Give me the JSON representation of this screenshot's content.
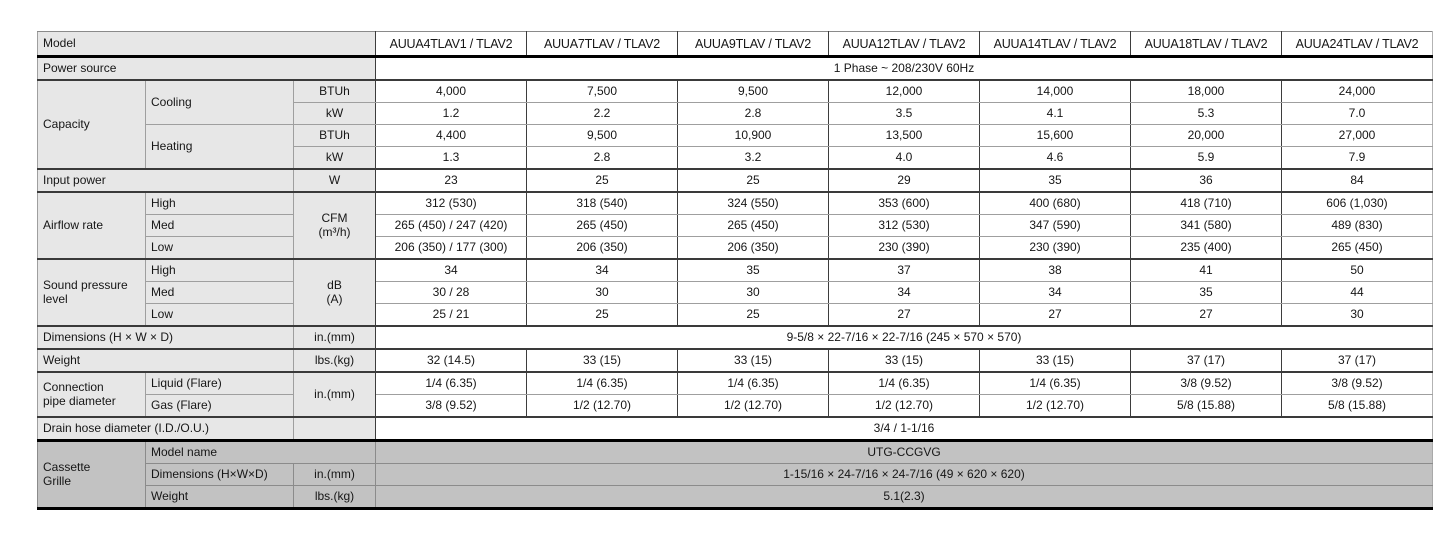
{
  "table": {
    "header": {
      "model_label": "Model",
      "models": [
        "AUUA4TLAV1 / TLAV2",
        "AUUA7TLAV / TLAV2",
        "AUUA9TLAV / TLAV2",
        "AUUA12TLAV / TLAV2",
        "AUUA14TLAV / TLAV2",
        "AUUA18TLAV / TLAV2",
        "AUUA24TLAV / TLAV2"
      ]
    },
    "power_source": {
      "label": "Power source",
      "value": "1 Phase ~ 208/230V 60Hz"
    },
    "capacity": {
      "label": "Capacity",
      "cooling": {
        "label": "Cooling",
        "btuh": {
          "unit": "BTUh",
          "values": [
            "4,000",
            "7,500",
            "9,500",
            "12,000",
            "14,000",
            "18,000",
            "24,000"
          ]
        },
        "kw": {
          "unit": "kW",
          "values": [
            "1.2",
            "2.2",
            "2.8",
            "3.5",
            "4.1",
            "5.3",
            "7.0"
          ]
        }
      },
      "heating": {
        "label": "Heating",
        "btuh": {
          "unit": "BTUh",
          "values": [
            "4,400",
            "9,500",
            "10,900",
            "13,500",
            "15,600",
            "20,000",
            "27,000"
          ]
        },
        "kw": {
          "unit": "kW",
          "values": [
            "1.3",
            "2.8",
            "3.2",
            "4.0",
            "4.6",
            "5.9",
            "7.9"
          ]
        }
      }
    },
    "input_power": {
      "label": "Input power",
      "unit": "W",
      "values": [
        "23",
        "25",
        "25",
        "29",
        "35",
        "36",
        "84"
      ]
    },
    "airflow_rate": {
      "label": "Airflow rate",
      "unit": "CFM\n(m³/h)",
      "high": {
        "label": "High",
        "values": [
          "312 (530)",
          "318 (540)",
          "324 (550)",
          "353 (600)",
          "400 (680)",
          "418 (710)",
          "606 (1,030)"
        ]
      },
      "med": {
        "label": "Med",
        "values": [
          "265 (450) / 247 (420)",
          "265 (450)",
          "265 (450)",
          "312 (530)",
          "347 (590)",
          "341 (580)",
          "489 (830)"
        ]
      },
      "low": {
        "label": "Low",
        "values": [
          "206 (350) / 177 (300)",
          "206 (350)",
          "206 (350)",
          "230 (390)",
          "230 (390)",
          "235 (400)",
          "265 (450)"
        ]
      }
    },
    "sound_pressure": {
      "label": "Sound pressure\nlevel",
      "unit": "dB\n(A)",
      "high": {
        "label": "High",
        "values": [
          "34",
          "34",
          "35",
          "37",
          "38",
          "41",
          "50"
        ]
      },
      "med": {
        "label": "Med",
        "values": [
          "30 / 28",
          "30",
          "30",
          "34",
          "34",
          "35",
          "44"
        ]
      },
      "low": {
        "label": "Low",
        "values": [
          "25 / 21",
          "25",
          "25",
          "27",
          "27",
          "27",
          "30"
        ]
      }
    },
    "dimensions": {
      "label": "Dimensions (H × W × D)",
      "unit": "in.(mm)",
      "value": "9-5/8 × 22-7/16 × 22-7/16 (245 × 570 × 570)"
    },
    "weight": {
      "label": "Weight",
      "unit": "lbs.(kg)",
      "values": [
        "32 (14.5)",
        "33 (15)",
        "33 (15)",
        "33 (15)",
        "33 (15)",
        "37 (17)",
        "37 (17)"
      ]
    },
    "connection_pipe": {
      "label": "Connection\npipe diameter",
      "unit": "in.(mm)",
      "liquid": {
        "label": "Liquid (Flare)",
        "values": [
          "1/4 (6.35)",
          "1/4 (6.35)",
          "1/4 (6.35)",
          "1/4 (6.35)",
          "1/4 (6.35)",
          "3/8 (9.52)",
          "3/8 (9.52)"
        ]
      },
      "gas": {
        "label": "Gas (Flare)",
        "values": [
          "3/8 (9.52)",
          "1/2 (12.70)",
          "1/2 (12.70)",
          "1/2 (12.70)",
          "1/2 (12.70)",
          "5/8 (15.88)",
          "5/8 (15.88)"
        ]
      }
    },
    "drain_hose": {
      "label": "Drain hose diameter (I.D./O.U.)",
      "value": "3/4  /  1-1/16"
    },
    "cassette_grille": {
      "label": "Cassette\nGrille",
      "model_name": {
        "label": "Model name",
        "value": "UTG-CCGVG"
      },
      "dimensions": {
        "label": "Dimensions (H×W×D)",
        "unit": "in.(mm)",
        "value": "1-15/16 × 24-7/16 × 24-7/16 (49 × 620 × 620)"
      },
      "weight": {
        "label": "Weight",
        "unit": "lbs.(kg)",
        "value": "5.1(2.3)"
      }
    },
    "colors": {
      "label_bg": "#e7e7e7",
      "cassette_bg": "#c2c2c2",
      "section_border": "#3a3a3a",
      "heavy_border": "#000000"
    }
  }
}
